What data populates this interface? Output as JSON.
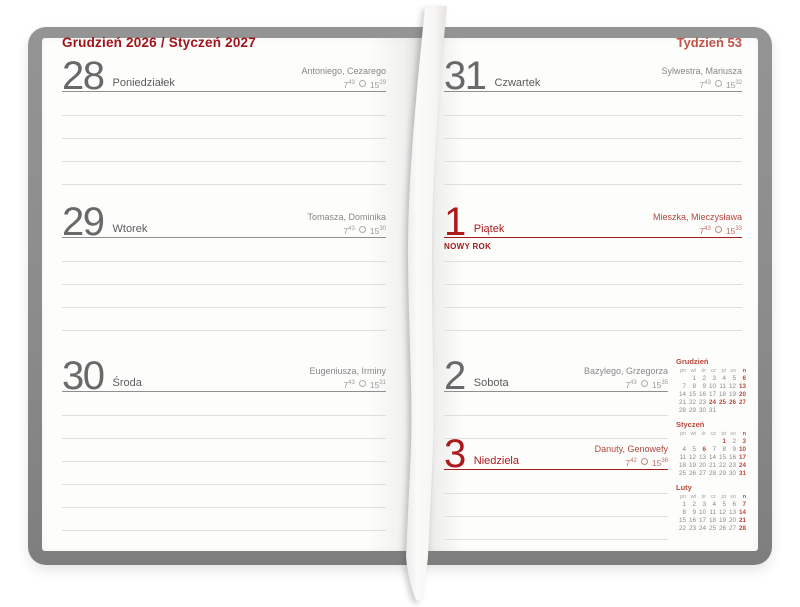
{
  "headers": {
    "left": "Grudzień 2026 / Styczeń 2027",
    "right": "Tydzień 53"
  },
  "left_days": [
    {
      "number": "28",
      "label": "Poniedziałek",
      "namedays": "Antoniego, Cezarego",
      "sunrise": {
        "h": "7",
        "m": "43"
      },
      "sunset": {
        "h": "15",
        "m": "29"
      },
      "red": false
    },
    {
      "number": "29",
      "label": "Wtorek",
      "namedays": "Tomasza, Dominika",
      "sunrise": {
        "h": "7",
        "m": "43"
      },
      "sunset": {
        "h": "15",
        "m": "30"
      },
      "red": false
    },
    {
      "number": "30",
      "label": "Środa",
      "namedays": "Eugeniusza, Irminy",
      "sunrise": {
        "h": "7",
        "m": "43"
      },
      "sunset": {
        "h": "15",
        "m": "31"
      },
      "red": false
    }
  ],
  "right_days": [
    {
      "number": "31",
      "label": "Czwartek",
      "namedays": "Sylwestra, Mariusza",
      "sunrise": {
        "h": "7",
        "m": "43"
      },
      "sunset": {
        "h": "15",
        "m": "32"
      },
      "red": false
    },
    {
      "number": "1",
      "label": "Piątek",
      "namedays": "Mieszka, Mieczysława",
      "sunrise": {
        "h": "7",
        "m": "43"
      },
      "sunset": {
        "h": "15",
        "m": "33"
      },
      "red": true,
      "holiday": "NOWY ROK"
    },
    {
      "number": "2",
      "label": "Sobota",
      "namedays": "Bazylego, Grzegorza",
      "sunrise": {
        "h": "7",
        "m": "43"
      },
      "sunset": {
        "h": "15",
        "m": "35"
      },
      "red": false
    },
    {
      "number": "3",
      "label": "Niedziela",
      "namedays": "Danuty, Genowefy",
      "sunrise": {
        "h": "7",
        "m": "42"
      },
      "sunset": {
        "h": "15",
        "m": "36"
      },
      "red": true
    }
  ],
  "mini_calendars": [
    {
      "month": "Grudzień",
      "weekdays": [
        "pn",
        "wt",
        "śr",
        "cz",
        "pt",
        "so",
        "n"
      ],
      "rows": [
        [
          "",
          "1",
          "2",
          "3",
          "4",
          "5",
          "6"
        ],
        [
          "7",
          "8",
          "9",
          "10",
          "11",
          "12",
          "13"
        ],
        [
          "14",
          "15",
          "16",
          "17",
          "18",
          "19",
          "20"
        ],
        [
          "21",
          "22",
          "23",
          "24",
          "25",
          "26",
          "27"
        ],
        [
          "28",
          "29",
          "30",
          "31",
          "",
          "",
          ""
        ]
      ],
      "red_days": [
        "6",
        "13",
        "20",
        "24",
        "25",
        "26",
        "27"
      ]
    },
    {
      "month": "Styczeń",
      "weekdays": [
        "pn",
        "wt",
        "śr",
        "cz",
        "pt",
        "so",
        "n"
      ],
      "rows": [
        [
          "",
          "",
          "",
          "",
          "1",
          "2",
          "3"
        ],
        [
          "4",
          "5",
          "6",
          "7",
          "8",
          "9",
          "10"
        ],
        [
          "11",
          "12",
          "13",
          "14",
          "15",
          "16",
          "17"
        ],
        [
          "18",
          "19",
          "20",
          "21",
          "22",
          "23",
          "24"
        ],
        [
          "25",
          "26",
          "27",
          "28",
          "29",
          "30",
          "31"
        ]
      ],
      "red_days": [
        "1",
        "3",
        "6",
        "10",
        "17",
        "24",
        "31"
      ]
    },
    {
      "month": "Luty",
      "weekdays": [
        "pn",
        "wt",
        "śr",
        "cz",
        "pt",
        "so",
        "n"
      ],
      "rows": [
        [
          "1",
          "2",
          "3",
          "4",
          "5",
          "6",
          "7"
        ],
        [
          "8",
          "9",
          "10",
          "11",
          "12",
          "13",
          "14"
        ],
        [
          "15",
          "16",
          "17",
          "18",
          "19",
          "20",
          "21"
        ],
        [
          "22",
          "23",
          "24",
          "25",
          "26",
          "27",
          "28"
        ]
      ],
      "red_days": [
        "7",
        "14",
        "21",
        "28"
      ]
    }
  ],
  "colors": {
    "header_red": "#a01419",
    "week_red": "#c15348",
    "day_red": "#ad1a1b",
    "minical_red": "#b8483a",
    "cover_gray": "#8b8b8b"
  }
}
